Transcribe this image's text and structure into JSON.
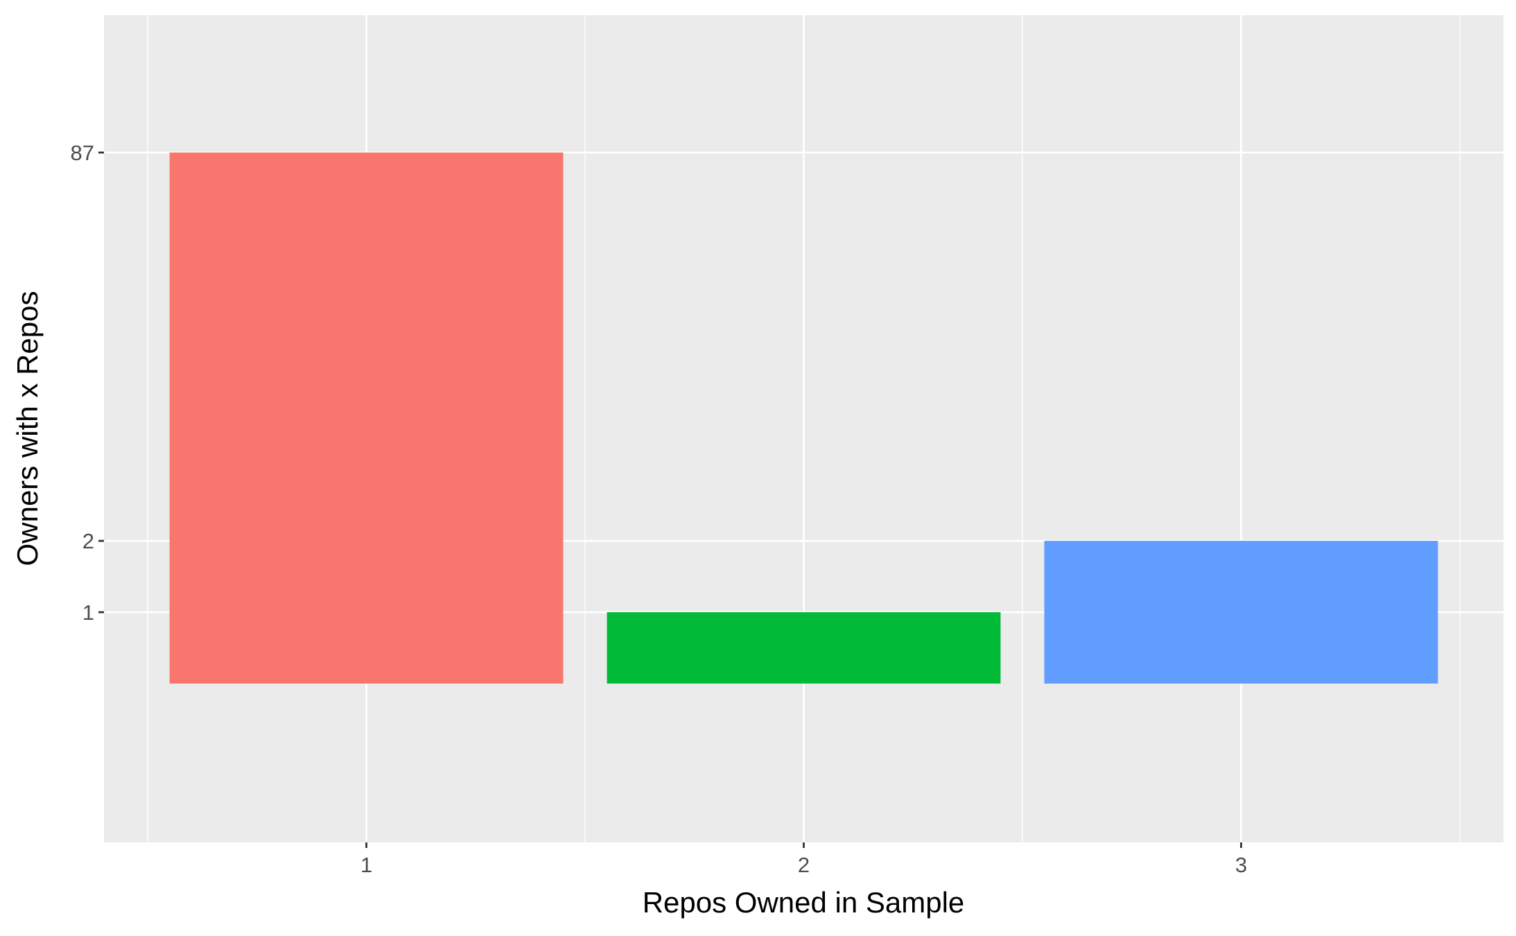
{
  "chart_data": {
    "type": "bar",
    "title": "",
    "xlabel": "Repos Owned in Sample",
    "ylabel": "Owners with x Repos",
    "categories": [
      "1",
      "2",
      "3"
    ],
    "values": [
      87,
      1,
      2
    ],
    "y_scale": "log",
    "y_tick_labels": [
      "1",
      "2",
      "87"
    ],
    "y_ticks": [
      1,
      2,
      87
    ],
    "ylim": [
      0.5,
      160
    ],
    "grid": true,
    "legend": "none",
    "colors": [
      "#F8766D",
      "#00BA38",
      "#619CFF"
    ],
    "panel_background": "#EBEBEB",
    "grid_color": "#FFFFFF"
  }
}
